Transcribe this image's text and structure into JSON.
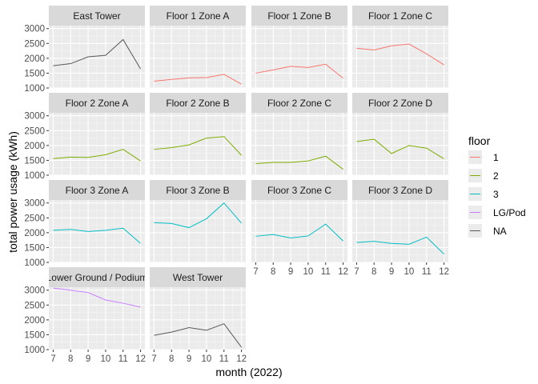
{
  "chart_data": {
    "type": "line",
    "xlabel": "month (2022)",
    "ylabel": "total power usage (kWh)",
    "x": [
      7,
      8,
      9,
      10,
      11,
      12
    ],
    "ylim": [
      1000,
      3100
    ],
    "yticks": [
      1000,
      1500,
      2000,
      2500,
      3000
    ],
    "grid": true,
    "facet_by": "floor zone",
    "legend": {
      "title": "floor",
      "position": "right",
      "entries": [
        {
          "label": "1",
          "color": "#F8766D"
        },
        {
          "label": "2",
          "color": "#7CAE00"
        },
        {
          "label": "3",
          "color": "#00BFC4"
        },
        {
          "label": "LG/Pod",
          "color": "#C77CFF"
        },
        {
          "label": "NA",
          "color": "#595959"
        }
      ]
    },
    "panels": [
      {
        "title": "East Tower",
        "floor": "NA",
        "values": [
          1750,
          1820,
          2050,
          2100,
          2630,
          1640
        ]
      },
      {
        "title": "Floor 1 Zone A",
        "floor": "1",
        "values": [
          1230,
          1290,
          1340,
          1350,
          1460,
          1130
        ]
      },
      {
        "title": "Floor 1 Zone B",
        "floor": "1",
        "values": [
          1500,
          1610,
          1730,
          1690,
          1800,
          1330
        ]
      },
      {
        "title": "Floor 1 Zone C",
        "floor": "1",
        "values": [
          2340,
          2280,
          2420,
          2480,
          2150,
          1780
        ]
      },
      {
        "title": "Floor 2 Zone A",
        "floor": "2",
        "values": [
          1560,
          1610,
          1600,
          1690,
          1870,
          1480
        ]
      },
      {
        "title": "Floor 2 Zone B",
        "floor": "2",
        "values": [
          1870,
          1930,
          2020,
          2250,
          2300,
          1670
        ]
      },
      {
        "title": "Floor 2 Zone C",
        "floor": "2",
        "values": [
          1390,
          1430,
          1430,
          1480,
          1640,
          1200
        ]
      },
      {
        "title": "Floor 2 Zone D",
        "floor": "2",
        "values": [
          2130,
          2210,
          1730,
          2000,
          1910,
          1550
        ]
      },
      {
        "title": "Floor 3 Zone A",
        "floor": "3",
        "values": [
          2080,
          2110,
          2040,
          2080,
          2150,
          1640
        ]
      },
      {
        "title": "Floor 3 Zone B",
        "floor": "3",
        "values": [
          2340,
          2310,
          2170,
          2470,
          3000,
          2320
        ]
      },
      {
        "title": "Floor 3 Zone C",
        "floor": "3",
        "values": [
          1880,
          1940,
          1820,
          1890,
          2290,
          1720
        ]
      },
      {
        "title": "Floor 3 Zone D",
        "floor": "3",
        "values": [
          1670,
          1710,
          1640,
          1610,
          1850,
          1280
        ]
      },
      {
        "title": "Lower Ground / Podium",
        "floor": "LG/Pod",
        "values": [
          3070,
          3000,
          2920,
          2670,
          2560,
          2430
        ]
      },
      {
        "title": "West Tower",
        "floor": "NA",
        "values": [
          1480,
          1590,
          1740,
          1650,
          1870,
          1080
        ]
      }
    ]
  }
}
